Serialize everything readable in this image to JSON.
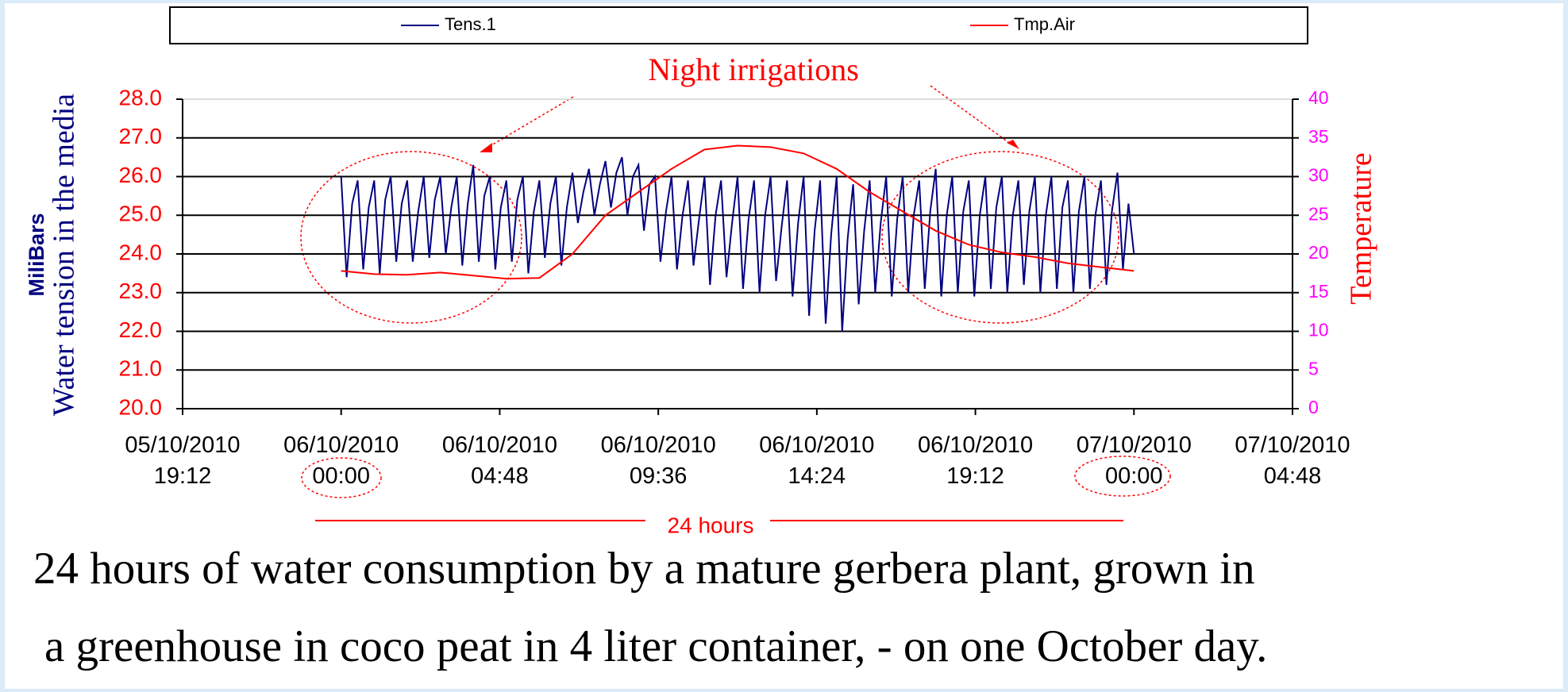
{
  "chart_data": {
    "type": "line",
    "legend": "top",
    "ylabel": "Water tension in the media",
    "ylabel_unit": "MiliBars",
    "y2label": "Temperature",
    "annotations": {
      "night": "Night  irrigations",
      "span": "24 hours"
    },
    "caption": [
      "24 hours of water consumption by a mature gerbera plant, grown in",
      "a greenhouse in coco peat in 4 liter container, - on one October day."
    ],
    "xlim": [
      "2010-10-05 19:12",
      "2010-10-07 04:48"
    ],
    "xticks": [
      {
        "value": "2010-10-05 19:12",
        "label": "05/10/2010\n19:12"
      },
      {
        "value": "2010-10-06 00:00",
        "label": "06/10/2010\n00:00"
      },
      {
        "value": "2010-10-06 04:48",
        "label": "06/10/2010\n04:48"
      },
      {
        "value": "2010-10-06 09:36",
        "label": "06/10/2010\n09:36"
      },
      {
        "value": "2010-10-06 14:24",
        "label": "06/10/2010\n14:24"
      },
      {
        "value": "2010-10-06 19:12",
        "label": "06/10/2010\n19:12"
      },
      {
        "value": "2010-10-07 00:00",
        "label": "07/10/2010\n00:00"
      },
      {
        "value": "2010-10-07 04:48",
        "label": "07/10/2010\n04:48"
      }
    ],
    "ylim": [
      20,
      28
    ],
    "yticks": [
      {
        "value": 20,
        "label": "20.0"
      },
      {
        "value": 21,
        "label": "21.0"
      },
      {
        "value": 22,
        "label": "22.0"
      },
      {
        "value": 23,
        "label": "23.0"
      },
      {
        "value": 24,
        "label": "24.0"
      },
      {
        "value": 25,
        "label": "25.0"
      },
      {
        "value": 26,
        "label": "26.0"
      },
      {
        "value": 27,
        "label": "27.0"
      },
      {
        "value": 28,
        "label": "28.0"
      }
    ],
    "y2lim": [
      0,
      40
    ],
    "y2ticks": [
      0,
      5,
      10,
      15,
      20,
      25,
      30,
      35,
      40
    ],
    "grid": true,
    "series": [
      {
        "name": "Tens.1",
        "color": "#000080",
        "x": [
          "2010-10-06 00:00",
          "2010-10-06 00:10",
          "2010-10-06 00:20",
          "2010-10-06 00:30",
          "2010-10-06 00:40",
          "2010-10-06 00:50",
          "2010-10-06 01:00",
          "2010-10-06 01:10",
          "2010-10-06 01:20",
          "2010-10-06 01:30",
          "2010-10-06 01:40",
          "2010-10-06 01:50",
          "2010-10-06 02:00",
          "2010-10-06 02:10",
          "2010-10-06 02:20",
          "2010-10-06 02:30",
          "2010-10-06 02:40",
          "2010-10-06 02:50",
          "2010-10-06 03:00",
          "2010-10-06 03:10",
          "2010-10-06 03:20",
          "2010-10-06 03:30",
          "2010-10-06 03:40",
          "2010-10-06 03:50",
          "2010-10-06 04:00",
          "2010-10-06 04:10",
          "2010-10-06 04:20",
          "2010-10-06 04:30",
          "2010-10-06 04:40",
          "2010-10-06 04:50",
          "2010-10-06 05:00",
          "2010-10-06 05:10",
          "2010-10-06 05:20",
          "2010-10-06 05:30",
          "2010-10-06 05:40",
          "2010-10-06 05:50",
          "2010-10-06 06:00",
          "2010-10-06 06:10",
          "2010-10-06 06:20",
          "2010-10-06 06:30",
          "2010-10-06 06:40",
          "2010-10-06 06:50",
          "2010-10-06 07:00",
          "2010-10-06 07:10",
          "2010-10-06 07:20",
          "2010-10-06 07:30",
          "2010-10-06 07:40",
          "2010-10-06 07:50",
          "2010-10-06 08:00",
          "2010-10-06 08:10",
          "2010-10-06 08:20",
          "2010-10-06 08:30",
          "2010-10-06 08:40",
          "2010-10-06 08:50",
          "2010-10-06 09:00",
          "2010-10-06 09:10",
          "2010-10-06 09:20",
          "2010-10-06 09:30",
          "2010-10-06 09:40",
          "2010-10-06 09:50",
          "2010-10-06 10:00",
          "2010-10-06 10:10",
          "2010-10-06 10:20",
          "2010-10-06 10:30",
          "2010-10-06 10:40",
          "2010-10-06 10:50",
          "2010-10-06 11:00",
          "2010-10-06 11:10",
          "2010-10-06 11:20",
          "2010-10-06 11:30",
          "2010-10-06 11:40",
          "2010-10-06 11:50",
          "2010-10-06 12:00",
          "2010-10-06 12:10",
          "2010-10-06 12:20",
          "2010-10-06 12:30",
          "2010-10-06 12:40",
          "2010-10-06 12:50",
          "2010-10-06 13:00",
          "2010-10-06 13:10",
          "2010-10-06 13:20",
          "2010-10-06 13:30",
          "2010-10-06 13:40",
          "2010-10-06 13:50",
          "2010-10-06 14:00",
          "2010-10-06 14:10",
          "2010-10-06 14:20",
          "2010-10-06 14:30",
          "2010-10-06 14:40",
          "2010-10-06 14:50",
          "2010-10-06 15:00",
          "2010-10-06 15:10",
          "2010-10-06 15:20",
          "2010-10-06 15:30",
          "2010-10-06 15:40",
          "2010-10-06 15:50",
          "2010-10-06 16:00",
          "2010-10-06 16:10",
          "2010-10-06 16:20",
          "2010-10-06 16:30",
          "2010-10-06 16:40",
          "2010-10-06 16:50",
          "2010-10-06 17:00",
          "2010-10-06 17:10",
          "2010-10-06 17:20",
          "2010-10-06 17:30",
          "2010-10-06 17:40",
          "2010-10-06 17:50",
          "2010-10-06 18:00",
          "2010-10-06 18:10",
          "2010-10-06 18:20",
          "2010-10-06 18:30",
          "2010-10-06 18:40",
          "2010-10-06 18:50",
          "2010-10-06 19:00",
          "2010-10-06 19:10",
          "2010-10-06 19:20",
          "2010-10-06 19:30",
          "2010-10-06 19:40",
          "2010-10-06 19:50",
          "2010-10-06 20:00",
          "2010-10-06 20:10",
          "2010-10-06 20:20",
          "2010-10-06 20:30",
          "2010-10-06 20:40",
          "2010-10-06 20:50",
          "2010-10-06 21:00",
          "2010-10-06 21:10",
          "2010-10-06 21:20",
          "2010-10-06 21:30",
          "2010-10-06 21:40",
          "2010-10-06 21:50",
          "2010-10-06 22:00",
          "2010-10-06 22:10",
          "2010-10-06 22:20",
          "2010-10-06 22:30",
          "2010-10-06 22:40",
          "2010-10-06 22:50",
          "2010-10-06 23:00",
          "2010-10-06 23:10",
          "2010-10-06 23:20",
          "2010-10-06 23:30",
          "2010-10-06 23:40",
          "2010-10-06 23:50",
          "2010-10-07 00:00"
        ],
        "values": [
          26.0,
          23.4,
          25.3,
          25.9,
          23.6,
          25.2,
          25.9,
          23.5,
          25.4,
          26.0,
          23.8,
          25.3,
          25.9,
          23.8,
          25.1,
          26.0,
          23.9,
          25.4,
          26.0,
          24.0,
          25.2,
          26.0,
          23.7,
          25.3,
          26.3,
          23.8,
          25.5,
          26.0,
          23.6,
          25.2,
          25.9,
          23.8,
          25.4,
          26.0,
          23.5,
          25.1,
          25.9,
          23.9,
          25.3,
          26.0,
          23.7,
          25.2,
          26.1,
          24.8,
          25.6,
          26.2,
          25.0,
          25.8,
          26.4,
          25.2,
          26.1,
          26.5,
          25.0,
          26.0,
          26.3,
          24.6,
          25.8,
          26.0,
          23.8,
          25.1,
          26.0,
          23.6,
          25.0,
          25.9,
          23.7,
          24.9,
          26.0,
          23.2,
          25.0,
          25.9,
          23.4,
          24.8,
          26.0,
          23.1,
          24.9,
          25.9,
          23.0,
          25.0,
          26.0,
          23.3,
          24.7,
          25.9,
          22.9,
          24.8,
          26.0,
          22.4,
          24.6,
          25.9,
          22.2,
          24.5,
          26.0,
          22.0,
          24.4,
          25.8,
          22.7,
          24.6,
          25.9,
          23.0,
          24.8,
          26.0,
          22.9,
          24.9,
          26.0,
          23.0,
          25.0,
          25.9,
          23.1,
          25.1,
          26.2,
          22.9,
          25.0,
          26.0,
          23.0,
          25.1,
          25.9,
          22.9,
          25.0,
          26.0,
          23.1,
          25.2,
          26.0,
          23.0,
          25.0,
          25.9,
          23.2,
          25.1,
          26.0,
          23.0,
          25.0,
          26.0,
          23.1,
          25.2,
          25.9,
          23.0,
          25.1,
          26.0,
          23.1,
          25.0,
          25.9,
          23.2,
          25.1,
          26.1,
          23.6,
          25.3,
          24.0
        ]
      },
      {
        "name": "Tmp.Air",
        "color": "#ff0000",
        "axis": "y2",
        "x": [
          "2010-10-06 00:00",
          "2010-10-06 01:00",
          "2010-10-06 02:00",
          "2010-10-06 03:00",
          "2010-10-06 04:00",
          "2010-10-06 05:00",
          "2010-10-06 06:00",
          "2010-10-06 07:00",
          "2010-10-06 08:00",
          "2010-10-06 09:00",
          "2010-10-06 10:00",
          "2010-10-06 11:00",
          "2010-10-06 12:00",
          "2010-10-06 13:00",
          "2010-10-06 14:00",
          "2010-10-06 15:00",
          "2010-10-06 16:00",
          "2010-10-06 17:00",
          "2010-10-06 18:00",
          "2010-10-06 19:00",
          "2010-10-06 20:00",
          "2010-10-06 21:00",
          "2010-10-06 22:00",
          "2010-10-06 23:00",
          "2010-10-07 00:00"
        ],
        "values": [
          17.8,
          17.4,
          17.3,
          17.6,
          17.2,
          16.8,
          16.9,
          20.0,
          25.0,
          28.0,
          31.0,
          33.5,
          34.0,
          33.8,
          33.0,
          31.0,
          28.0,
          25.5,
          23.0,
          21.2,
          20.2,
          19.6,
          18.8,
          18.3,
          17.8
        ]
      }
    ]
  }
}
